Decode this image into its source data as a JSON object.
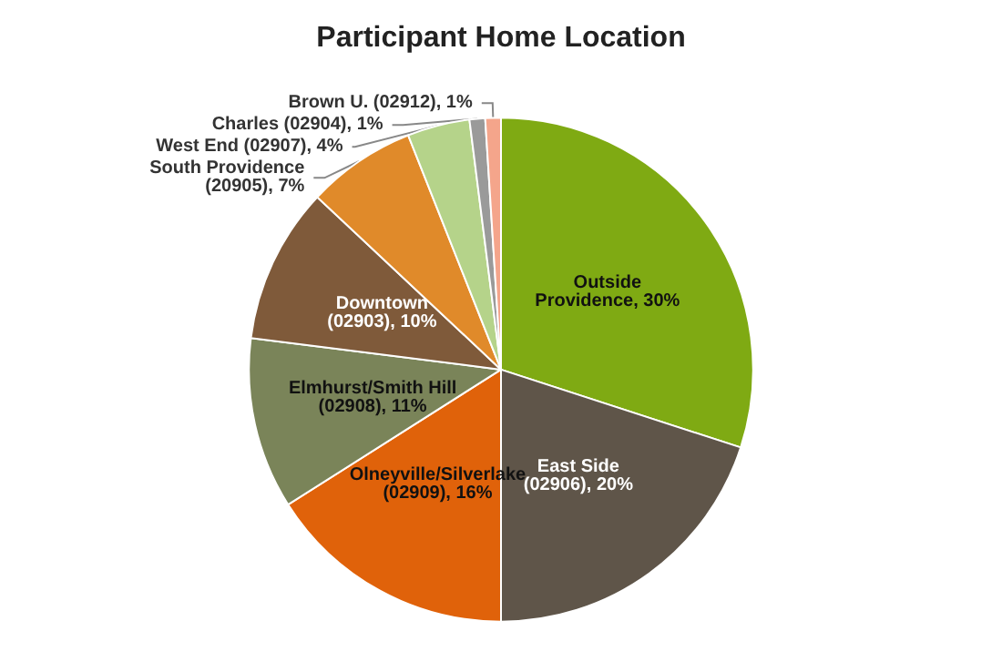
{
  "chart_data": {
    "type": "pie",
    "title": "Participant Home Location",
    "categories": [
      "Outside Providence",
      "East Side (02906)",
      "Olneyville/Silverlake (02909)",
      "Elmhurst/Smith Hill (02908)",
      "Downtown (02903)",
      "South Providence (20905)",
      "West End (02907)",
      "Charles (02904)",
      "Brown U. (02912)"
    ],
    "values": [
      30,
      20,
      16,
      11,
      10,
      7,
      4,
      1,
      1
    ],
    "colors": [
      "#7faa13",
      "#5f5549",
      "#e0620a",
      "#7a8459",
      "#7f5a3a",
      "#e08a2a",
      "#b5d38a",
      "#9a9a9a",
      "#f4a58b"
    ],
    "value_labels": [
      "30%",
      "20%",
      "16%",
      "11%",
      "10%",
      "7%",
      "4%",
      "1%",
      "1%"
    ],
    "legend": false
  }
}
